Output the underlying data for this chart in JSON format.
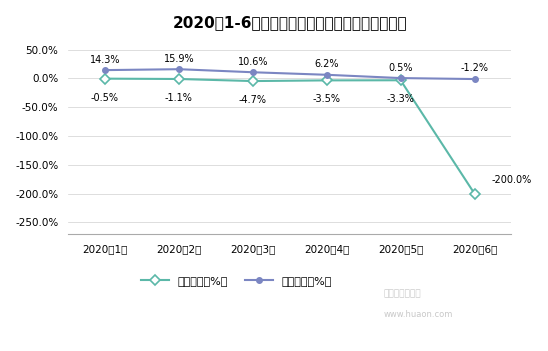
{
  "title": "2020年1-6月活鸡（普通肉鸡）集贸市场价格增速",
  "categories": [
    "2020年1月",
    "2020年2月",
    "2020年3月",
    "2020年4月",
    "2020年5月",
    "2020年6月"
  ],
  "huanbi": [
    -0.5,
    -1.1,
    -4.7,
    -3.5,
    -3.3,
    -200.0
  ],
  "tongbi": [
    14.3,
    15.9,
    10.6,
    6.2,
    0.5,
    -1.2
  ],
  "huanbi_labels": [
    "-0.5%",
    "-1.1%",
    "-4.7%",
    "-3.5%",
    "-3.3%",
    "-200.0%"
  ],
  "tongbi_labels": [
    "14.3%",
    "15.9%",
    "10.6%",
    "6.2%",
    "0.5%",
    "-1.2%"
  ],
  "huanbi_color": "#5BB8A8",
  "tongbi_color": "#7B86C2",
  "ylim": [
    -270,
    65
  ],
  "yticks": [
    50,
    0,
    -50,
    -100,
    -150,
    -200,
    -250
  ],
  "ytick_labels": [
    "50.0%",
    "0.0%",
    "-50.0%",
    "-100.0%",
    "-150.0%",
    "-200.0%",
    "-250.0%"
  ],
  "legend_huanbi": "环比增长（%）",
  "legend_tongbi": "同比增长（%）",
  "bg_color": "#ffffff",
  "watermark1": "华经产业研究院",
  "watermark2": "www.huaon.com"
}
